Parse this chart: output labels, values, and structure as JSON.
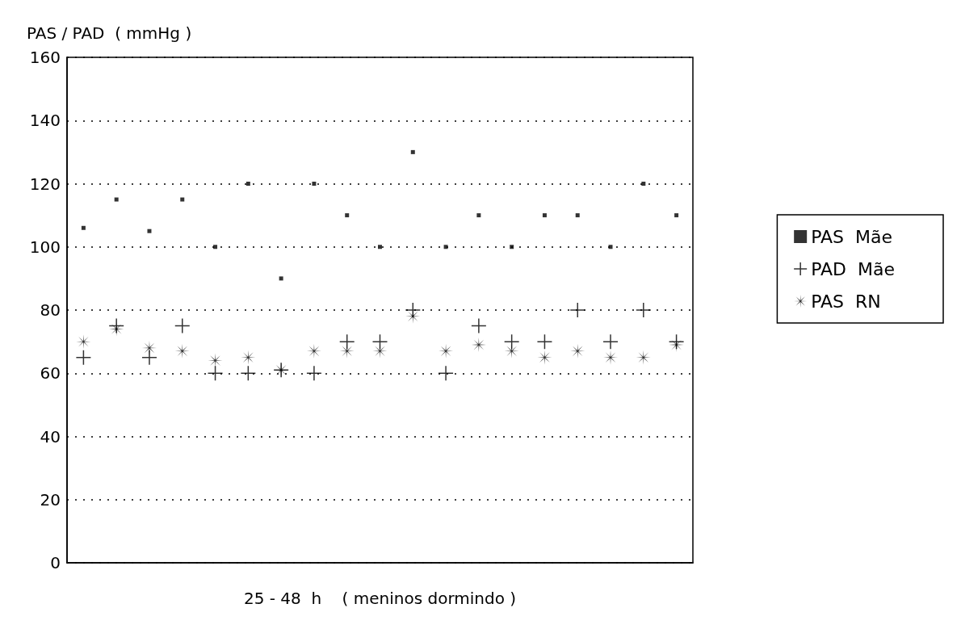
{
  "chart_data": {
    "type": "scatter",
    "ylabel": "PAS / PAD  ( mmHg )",
    "xlabel": "25 - 48  h    ( meninos dormindo )",
    "categories": [
      null,
      null,
      null,
      null,
      null,
      null,
      null,
      null,
      null,
      null,
      null,
      null,
      null,
      null,
      null,
      null,
      null,
      null,
      null
    ],
    "series": [
      {
        "name": "PAS  Mãe",
        "color": "#000000",
        "marker": "square",
        "values": [
          106,
          115,
          105,
          115,
          100,
          120,
          90,
          120,
          110,
          100,
          130,
          100,
          110,
          100,
          110,
          110,
          100,
          120,
          110
        ]
      },
      {
        "name": "PAD  Mãe",
        "color": "#000000",
        "marker": "cross",
        "values": [
          65,
          75,
          65,
          75,
          60,
          60,
          61,
          60,
          70,
          70,
          80,
          60,
          75,
          70,
          70,
          80,
          70,
          80,
          70
        ]
      },
      {
        "name": "PAS  RN",
        "color": "#000000",
        "marker": "star",
        "values": [
          70,
          74,
          68,
          67,
          64,
          65,
          61,
          67,
          67,
          67,
          78,
          67,
          69,
          67,
          65,
          67,
          65,
          65,
          69
        ]
      }
    ],
    "ylim": [
      0,
      160
    ],
    "yticks": [
      0,
      20,
      40,
      60,
      80,
      100,
      120,
      140,
      160
    ],
    "grid": "y",
    "legend": "right"
  }
}
